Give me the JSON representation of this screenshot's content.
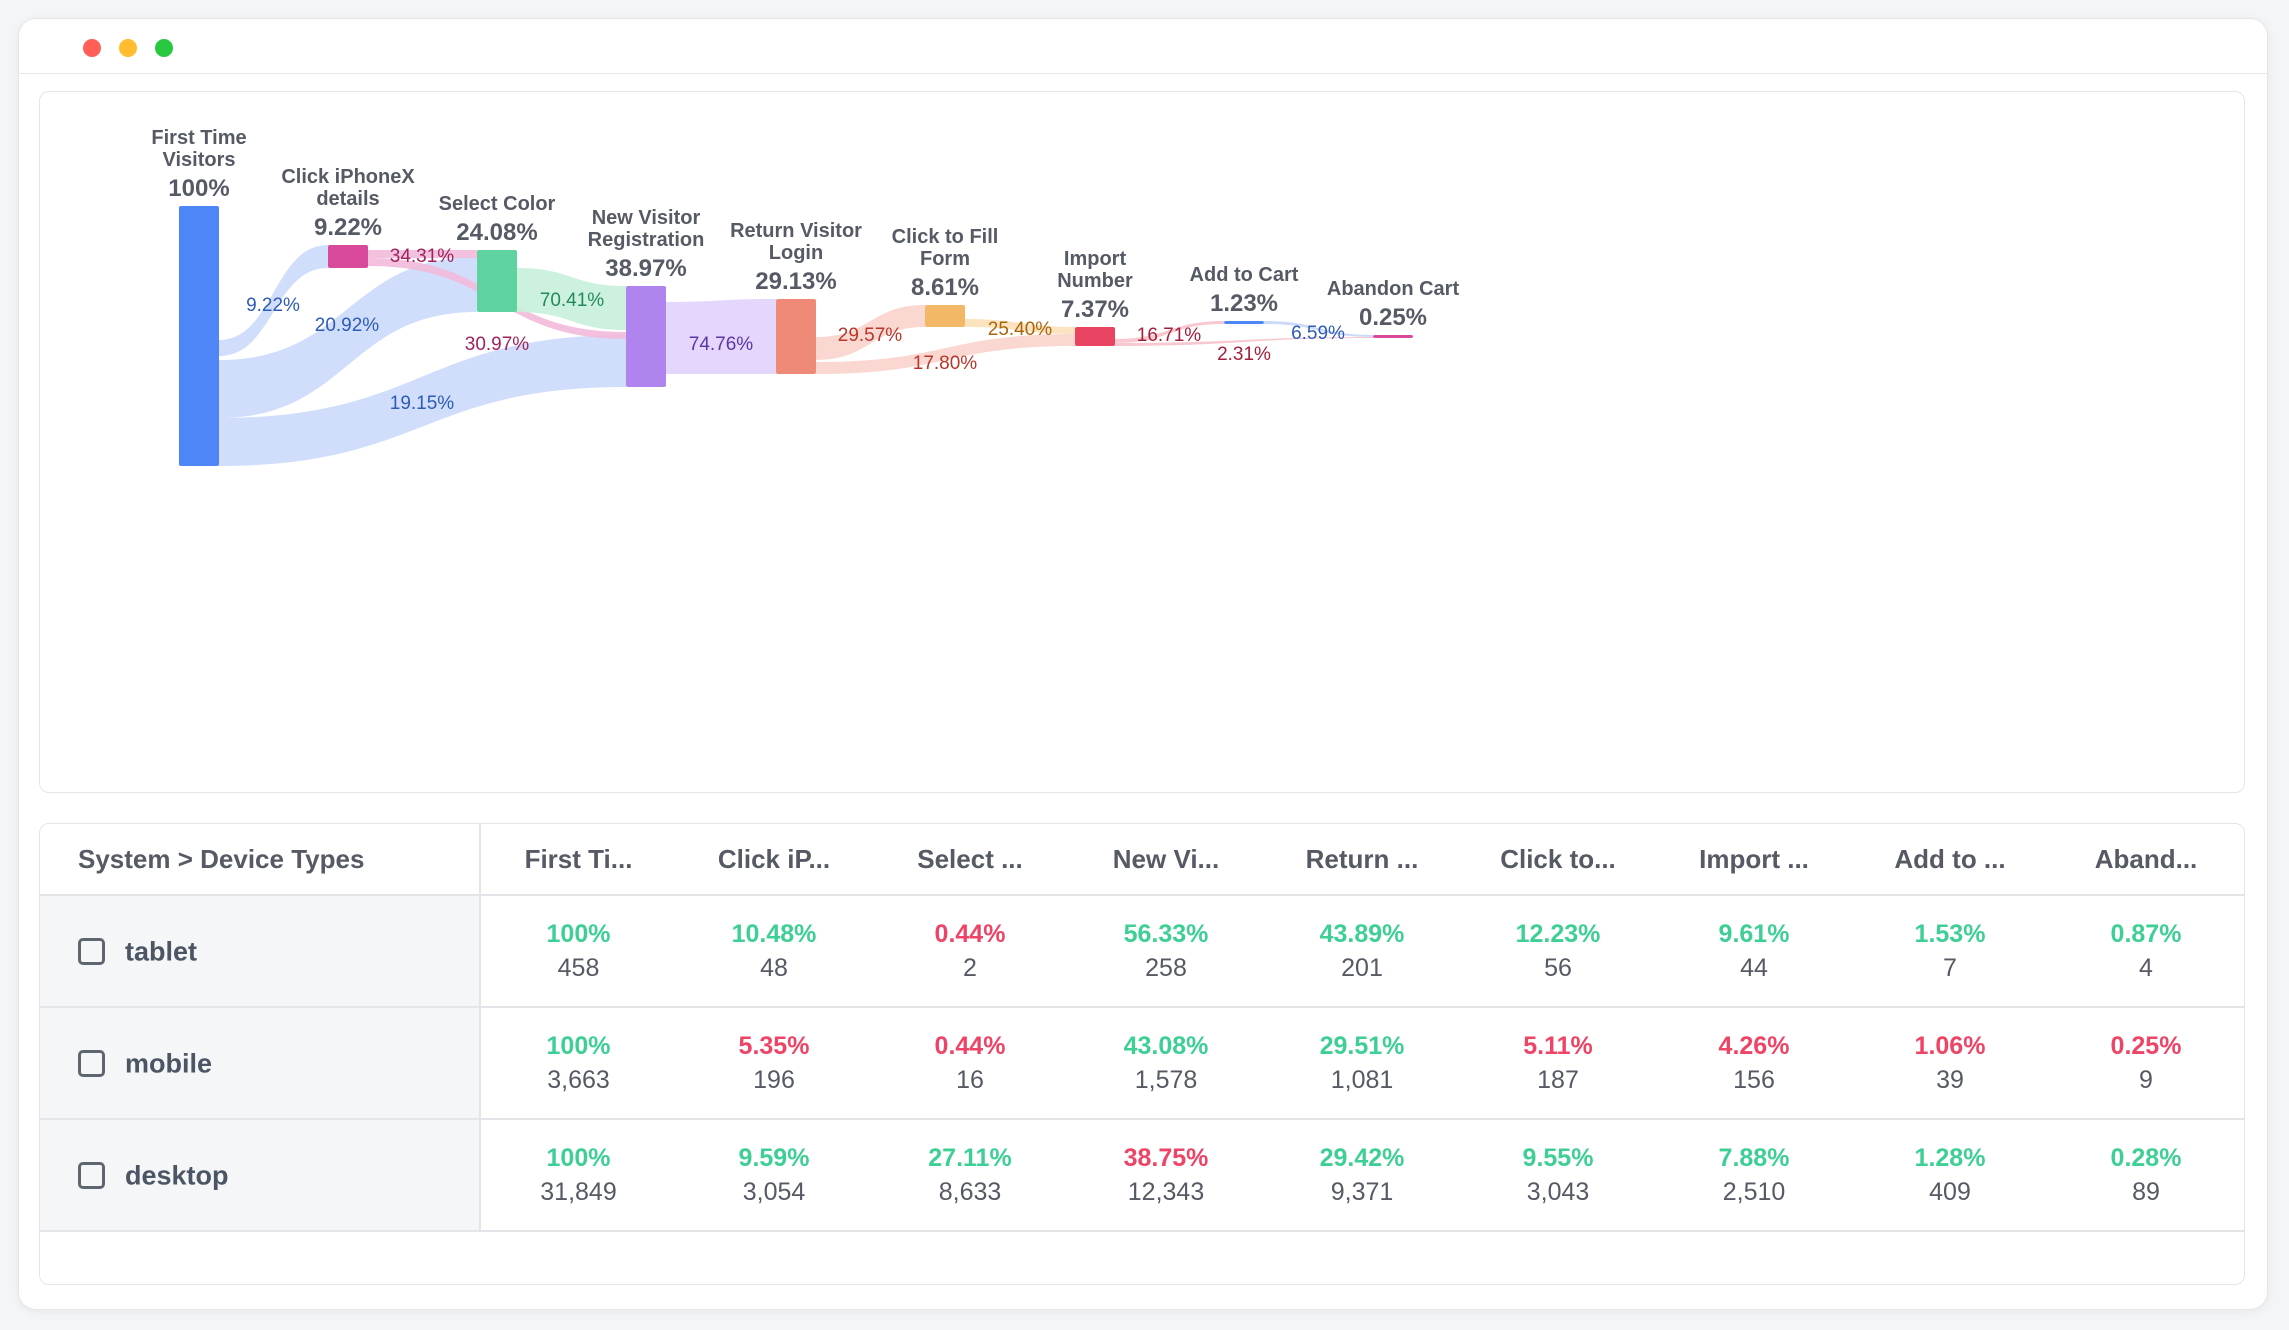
{
  "colors": {
    "good": "#3ecf95",
    "bad": "#ee4466"
  },
  "chart_data": {
    "type": "sankey",
    "nodes": [
      {
        "id": "ftv",
        "label_lines": [
          "First Time",
          "Visitors"
        ],
        "value": 100,
        "value_label": "100%",
        "color": "#4f86f7"
      },
      {
        "id": "ipx",
        "label_lines": [
          "Click iPhoneX",
          "details"
        ],
        "value": 9.22,
        "value_label": "9.22%",
        "color": "#d9499a"
      },
      {
        "id": "color",
        "label_lines": [
          "Select Color"
        ],
        "value": 24.08,
        "value_label": "24.08%",
        "color": "#5ed3a0"
      },
      {
        "id": "nvr",
        "label_lines": [
          "New Visitor",
          "Registration"
        ],
        "value": 38.97,
        "value_label": "38.97%",
        "color": "#b084ee"
      },
      {
        "id": "rvl",
        "label_lines": [
          "Return Visitor",
          "Login"
        ],
        "value": 29.13,
        "value_label": "29.13%",
        "color": "#ef8a78"
      },
      {
        "id": "cff",
        "label_lines": [
          "Click to Fill",
          "Form"
        ],
        "value": 8.61,
        "value_label": "8.61%",
        "color": "#f3b866"
      },
      {
        "id": "imp",
        "label_lines": [
          "Import",
          "Number"
        ],
        "value": 7.37,
        "value_label": "7.37%",
        "color": "#e84360"
      },
      {
        "id": "atc",
        "label_lines": [
          "Add to Cart"
        ],
        "value": 1.23,
        "value_label": "1.23%",
        "color": "#4f86f7"
      },
      {
        "id": "abn",
        "label_lines": [
          "Abandon Cart"
        ],
        "value": 0.25,
        "value_label": "0.25%",
        "color": "#d9499a"
      }
    ],
    "links": [
      {
        "source": "ftv",
        "target": "ipx",
        "value": 9.22,
        "label": "9.22%"
      },
      {
        "source": "ftv",
        "target": "color",
        "value": 20.92,
        "label": "20.92%"
      },
      {
        "source": "ftv",
        "target": "nvr",
        "value": 19.15,
        "label": "19.15%"
      },
      {
        "source": "ipx",
        "target": "color",
        "value": 34.31,
        "label": "34.31%"
      },
      {
        "source": "ipx",
        "target": "nvr",
        "value": 30.97,
        "label": "30.97%"
      },
      {
        "source": "color",
        "target": "nvr",
        "value": 70.41,
        "label": "70.41%"
      },
      {
        "source": "nvr",
        "target": "rvl",
        "value": 74.76,
        "label": "74.76%"
      },
      {
        "source": "rvl",
        "target": "cff",
        "value": 29.57,
        "label": "29.57%"
      },
      {
        "source": "rvl",
        "target": "imp",
        "value": 17.8,
        "label": "17.80%"
      },
      {
        "source": "cff",
        "target": "imp",
        "value": 25.4,
        "label": "25.40%"
      },
      {
        "source": "imp",
        "target": "atc",
        "value": 16.71,
        "label": "16.71%"
      },
      {
        "source": "imp",
        "target": "abn",
        "value": 2.31,
        "label": "2.31%"
      },
      {
        "source": "atc",
        "target": "abn",
        "value": 6.59,
        "label": "6.59%"
      }
    ]
  },
  "table": {
    "dimension_header": "System > Device Types",
    "columns": [
      "First Ti...",
      "Click iP...",
      "Select ...",
      "New Vi...",
      "Return ...",
      "Click to...",
      "Import ...",
      "Add to ...",
      "Aband..."
    ],
    "rows": [
      {
        "label": "tablet",
        "cells": [
          {
            "pct": "100%",
            "count": "458",
            "status": "good"
          },
          {
            "pct": "10.48%",
            "count": "48",
            "status": "good"
          },
          {
            "pct": "0.44%",
            "count": "2",
            "status": "bad"
          },
          {
            "pct": "56.33%",
            "count": "258",
            "status": "good"
          },
          {
            "pct": "43.89%",
            "count": "201",
            "status": "good"
          },
          {
            "pct": "12.23%",
            "count": "56",
            "status": "good"
          },
          {
            "pct": "9.61%",
            "count": "44",
            "status": "good"
          },
          {
            "pct": "1.53%",
            "count": "7",
            "status": "good"
          },
          {
            "pct": "0.87%",
            "count": "4",
            "status": "good"
          }
        ]
      },
      {
        "label": "mobile",
        "cells": [
          {
            "pct": "100%",
            "count": "3,663",
            "status": "good"
          },
          {
            "pct": "5.35%",
            "count": "196",
            "status": "bad"
          },
          {
            "pct": "0.44%",
            "count": "16",
            "status": "bad"
          },
          {
            "pct": "43.08%",
            "count": "1,578",
            "status": "good"
          },
          {
            "pct": "29.51%",
            "count": "1,081",
            "status": "good"
          },
          {
            "pct": "5.11%",
            "count": "187",
            "status": "bad"
          },
          {
            "pct": "4.26%",
            "count": "156",
            "status": "bad"
          },
          {
            "pct": "1.06%",
            "count": "39",
            "status": "bad"
          },
          {
            "pct": "0.25%",
            "count": "9",
            "status": "bad"
          }
        ]
      },
      {
        "label": "desktop",
        "cells": [
          {
            "pct": "100%",
            "count": "31,849",
            "status": "good"
          },
          {
            "pct": "9.59%",
            "count": "3,054",
            "status": "good"
          },
          {
            "pct": "27.11%",
            "count": "8,633",
            "status": "good"
          },
          {
            "pct": "38.75%",
            "count": "12,343",
            "status": "bad"
          },
          {
            "pct": "29.42%",
            "count": "9,371",
            "status": "good"
          },
          {
            "pct": "9.55%",
            "count": "3,043",
            "status": "good"
          },
          {
            "pct": "7.88%",
            "count": "2,510",
            "status": "good"
          },
          {
            "pct": "1.28%",
            "count": "409",
            "status": "good"
          },
          {
            "pct": "0.28%",
            "count": "89",
            "status": "good"
          }
        ]
      }
    ]
  }
}
